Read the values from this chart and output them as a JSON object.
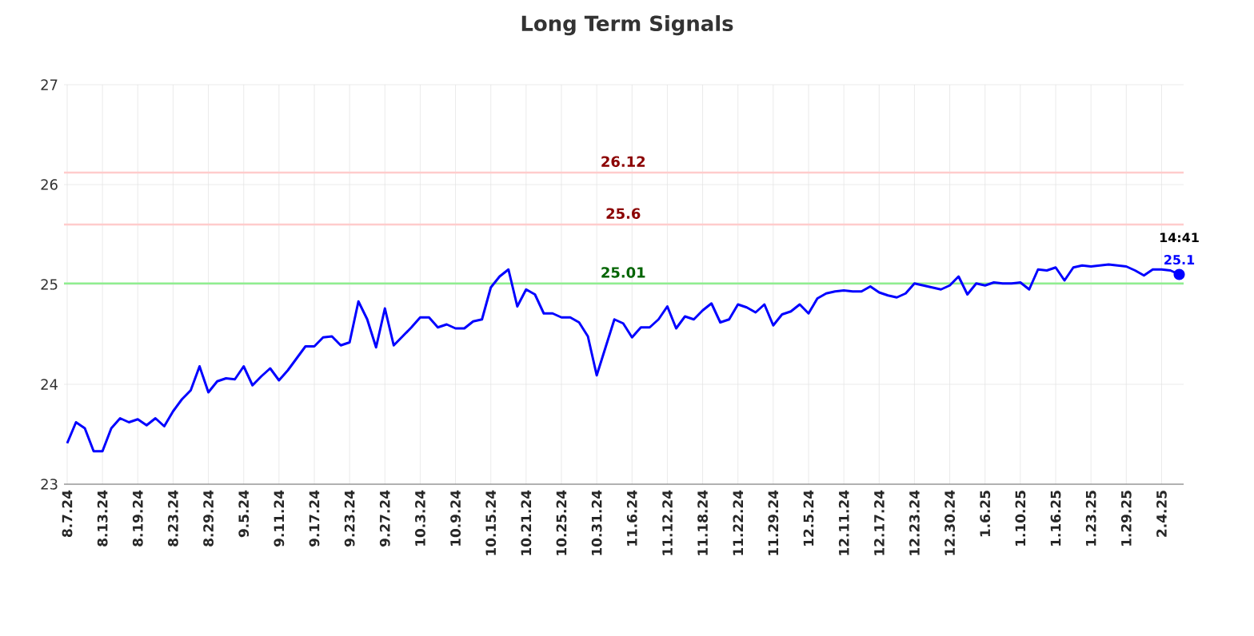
{
  "chart_data": {
    "type": "line",
    "title": "Long Term Signals",
    "categories": [
      "8.7.24",
      null,
      null,
      null,
      "8.13.24",
      null,
      null,
      null,
      "8.19.24",
      null,
      null,
      null,
      "8.23.24",
      null,
      null,
      null,
      "8.29.24",
      null,
      null,
      null,
      "9.5.24",
      null,
      null,
      null,
      "9.11.24",
      null,
      null,
      null,
      "9.17.24",
      null,
      null,
      null,
      "9.23.24",
      null,
      null,
      null,
      "9.27.24",
      null,
      null,
      null,
      "10.3.24",
      null,
      null,
      null,
      "10.9.24",
      null,
      null,
      null,
      "10.15.24",
      null,
      null,
      null,
      "10.21.24",
      null,
      null,
      null,
      "10.25.24",
      null,
      null,
      null,
      "10.31.24",
      null,
      null,
      null,
      "11.6.24",
      null,
      null,
      null,
      "11.12.24",
      null,
      null,
      null,
      "11.18.24",
      null,
      null,
      null,
      "11.22.24",
      null,
      null,
      null,
      "11.29.24",
      null,
      null,
      null,
      "12.5.24",
      null,
      null,
      null,
      "12.11.24",
      null,
      null,
      null,
      "12.17.24",
      null,
      null,
      null,
      "12.23.24",
      null,
      null,
      null,
      "12.30.24",
      null,
      null,
      null,
      "1.6.25",
      null,
      null,
      null,
      "1.10.25",
      null,
      null,
      null,
      "1.16.25",
      null,
      null,
      null,
      "1.23.25",
      null,
      null,
      null,
      "1.29.25",
      null,
      null,
      null,
      "2.4.25",
      null,
      null
    ],
    "series": [
      {
        "color": "#0000ff",
        "values": [
          23.41,
          23.62,
          23.56,
          23.33,
          23.33,
          23.56,
          23.66,
          23.62,
          23.65,
          23.59,
          23.66,
          23.58,
          23.73,
          23.85,
          23.94,
          24.18,
          23.92,
          24.03,
          24.06,
          24.05,
          24.18,
          23.99,
          24.08,
          24.16,
          24.04,
          24.14,
          24.26,
          24.38,
          24.38,
          24.47,
          24.48,
          24.39,
          24.42,
          24.83,
          24.65,
          24.37,
          24.76,
          24.39,
          24.48,
          24.57,
          24.67,
          24.67,
          24.57,
          24.6,
          24.56,
          24.56,
          24.63,
          24.65,
          24.97,
          25.08,
          25.15,
          24.78,
          24.95,
          24.9,
          24.71,
          24.71,
          24.67,
          24.67,
          24.62,
          24.48,
          24.09,
          24.37,
          24.65,
          24.61,
          24.47,
          24.57,
          24.57,
          24.65,
          24.78,
          24.56,
          24.68,
          24.65,
          24.74,
          24.81,
          24.62,
          24.65,
          24.8,
          24.77,
          24.72,
          24.8,
          24.59,
          24.7,
          24.73,
          24.8,
          24.71,
          24.86,
          24.91,
          24.93,
          24.94,
          24.93,
          24.93,
          24.98,
          24.92,
          24.89,
          24.87,
          24.91,
          25.01,
          24.99,
          24.97,
          24.95,
          24.99,
          25.08,
          24.9,
          25.01,
          24.99,
          25.02,
          25.01,
          25.01,
          25.02,
          24.95,
          25.15,
          25.14,
          25.17,
          25.04,
          25.17,
          25.19,
          25.18,
          25.19,
          25.2,
          25.19,
          25.18,
          25.14,
          25.09,
          25.15,
          25.15,
          25.14,
          25.1
        ],
        "value_labels": [
          null,
          null,
          null,
          null,
          null,
          null,
          null,
          null,
          null,
          null,
          null,
          null,
          null,
          null,
          null,
          null,
          null,
          null,
          null,
          null,
          null,
          null,
          null,
          null,
          null,
          null,
          null,
          null,
          null,
          null,
          null,
          null,
          null,
          null,
          null,
          null,
          null,
          null,
          null,
          null,
          null,
          null,
          null,
          null,
          null,
          null,
          null,
          null,
          null,
          null,
          null,
          null,
          null,
          null,
          null,
          null,
          null,
          null,
          null,
          null,
          null,
          null,
          null,
          null,
          null,
          null,
          null,
          null,
          null,
          null,
          null,
          null,
          null,
          null,
          null,
          null,
          null,
          null,
          null,
          null,
          null,
          null,
          null,
          null,
          null,
          null,
          null,
          null,
          null,
          null,
          null,
          null,
          null,
          null,
          null,
          null,
          null,
          null,
          null,
          null,
          null,
          null,
          null,
          null,
          null,
          null,
          null,
          null,
          null,
          null,
          null,
          null,
          null,
          null,
          null,
          null,
          null,
          null,
          null,
          null,
          null,
          null,
          null,
          null,
          null,
          null,
          "25.1"
        ]
      }
    ],
    "ylim": [
      23,
      27
    ],
    "yticks": [
      23,
      24,
      25,
      26,
      27
    ],
    "grid": true,
    "ref_lines": [
      {
        "axis": "y",
        "value": 26.12,
        "label": "26.12",
        "color": "#ffcccc"
      },
      {
        "axis": "y",
        "value": 25.6,
        "label": "25.6",
        "color": "#ffcccc"
      },
      {
        "axis": "y",
        "value": 25.01,
        "label": "25.01",
        "color": "#90ee90"
      }
    ],
    "annotations": [
      "14:41"
    ]
  }
}
